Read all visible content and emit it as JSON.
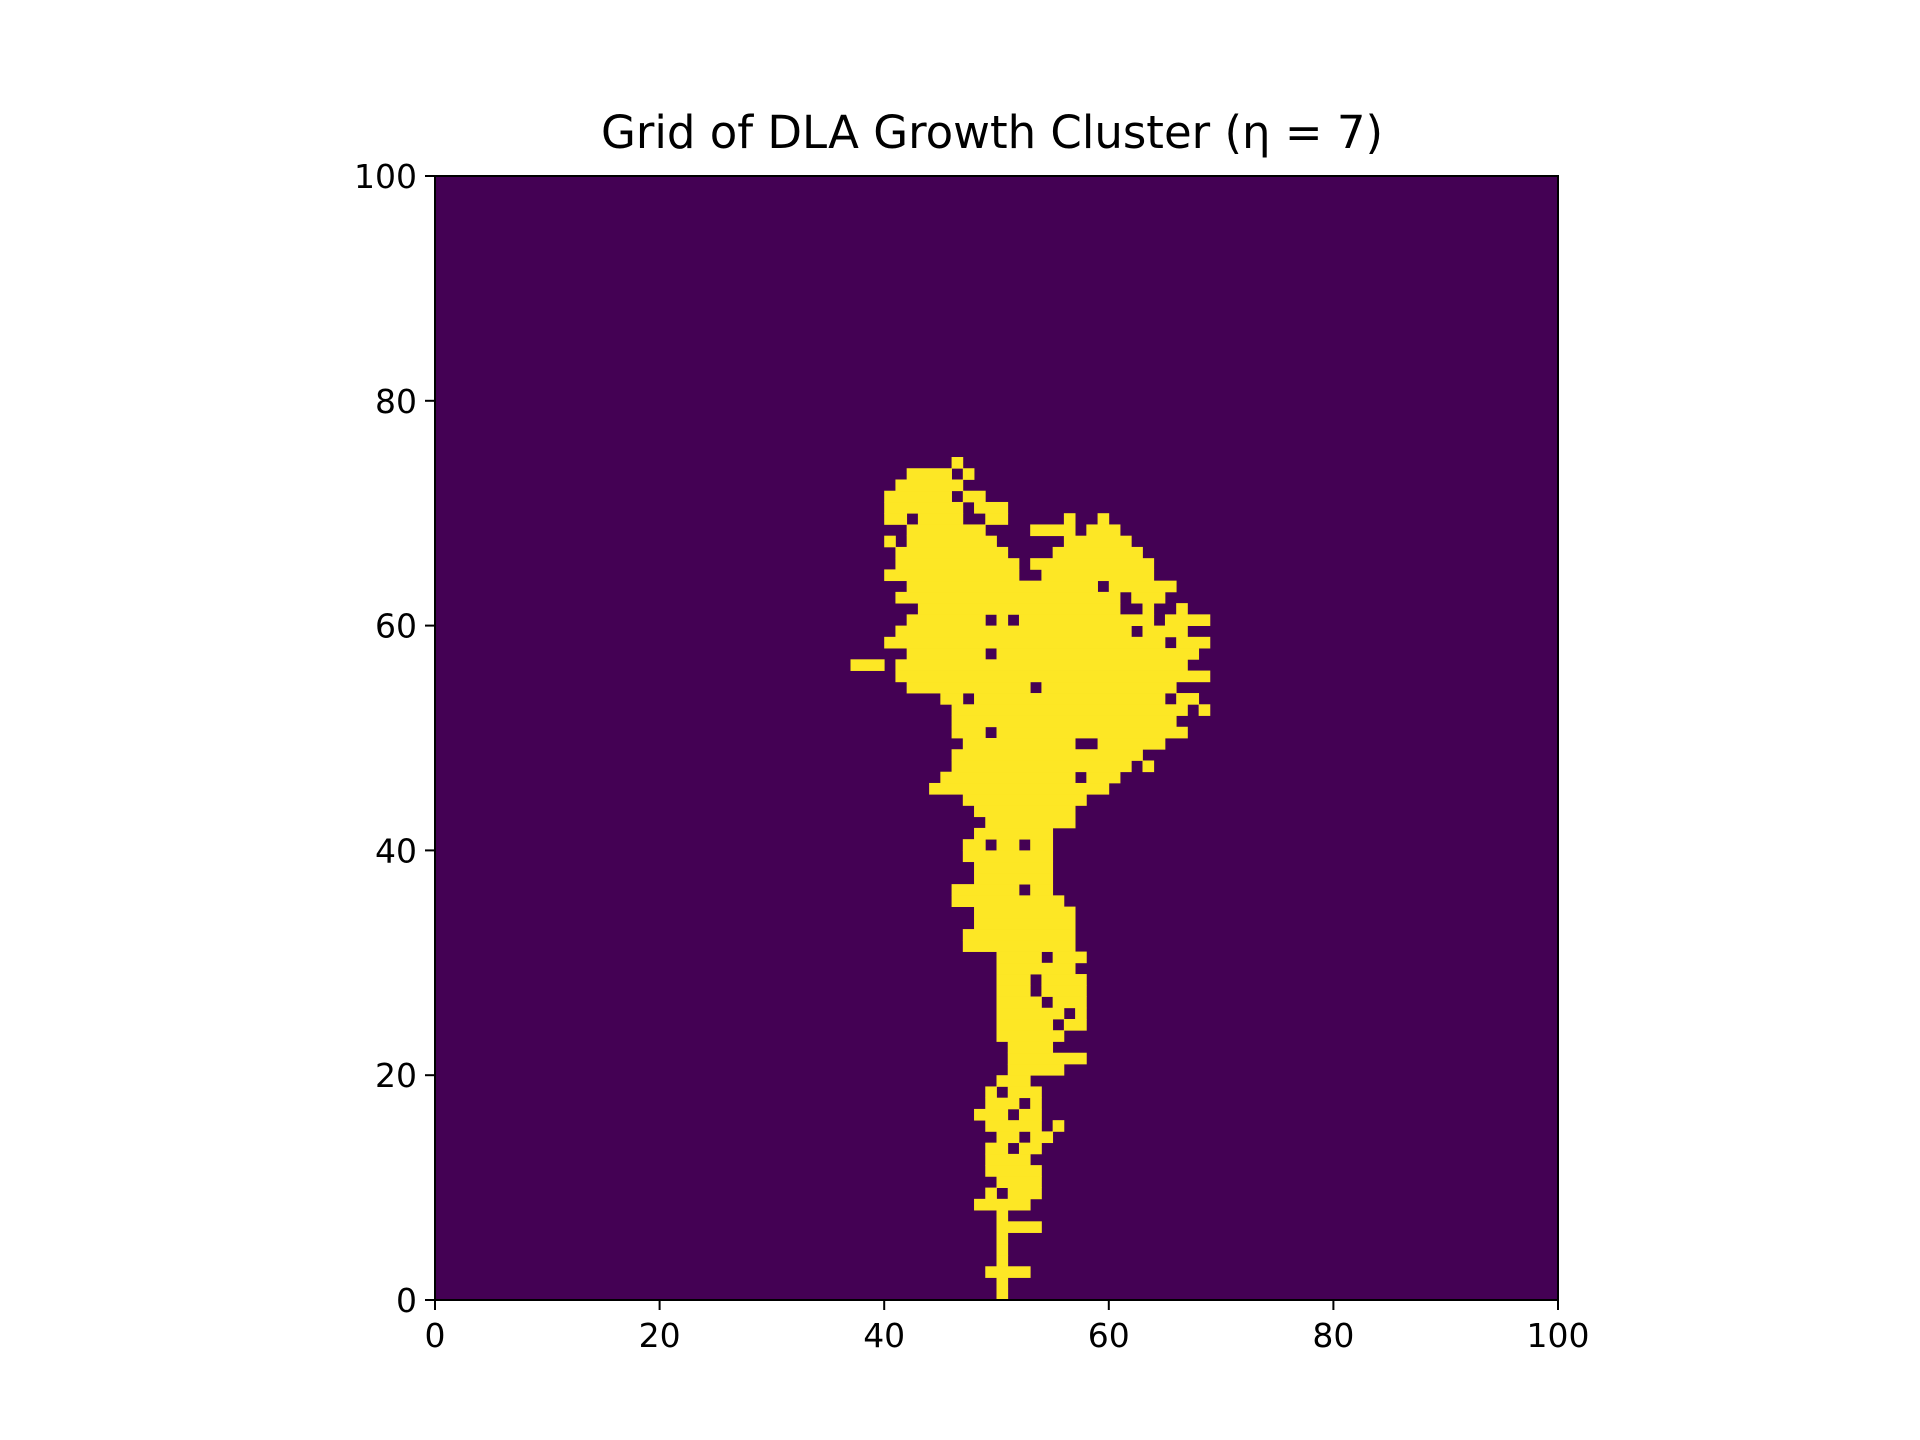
{
  "chart_data": {
    "type": "heatmap",
    "title": "Grid of DLA Growth Cluster (η = 7)",
    "xlabel": "",
    "ylabel": "",
    "xlim": [
      0,
      100
    ],
    "ylim": [
      0,
      100
    ],
    "grid_size": [
      100,
      100
    ],
    "x_ticks": [
      "0",
      "20",
      "40",
      "60",
      "80",
      "100"
    ],
    "y_ticks": [
      "0",
      "20",
      "40",
      "60",
      "80",
      "100"
    ],
    "colormap": {
      "empty": "#440154",
      "occupied": "#fde725"
    },
    "grid": false,
    "occupied_runs_by_row": [
      {
        "y": 0,
        "runs": [
          [
            50,
            50
          ]
        ]
      },
      {
        "y": 1,
        "runs": [
          [
            50,
            50
          ]
        ]
      },
      {
        "y": 2,
        "runs": [
          [
            49,
            52
          ]
        ]
      },
      {
        "y": 3,
        "runs": [
          [
            50,
            50
          ]
        ]
      },
      {
        "y": 4,
        "runs": [
          [
            50,
            50
          ]
        ]
      },
      {
        "y": 5,
        "runs": [
          [
            50,
            50
          ]
        ]
      },
      {
        "y": 6,
        "runs": [
          [
            50,
            53
          ]
        ]
      },
      {
        "y": 7,
        "runs": [
          [
            50,
            50
          ]
        ]
      },
      {
        "y": 8,
        "runs": [
          [
            48,
            52
          ]
        ]
      },
      {
        "y": 9,
        "runs": [
          [
            49,
            49
          ],
          [
            51,
            53
          ]
        ]
      },
      {
        "y": 10,
        "runs": [
          [
            50,
            53
          ]
        ]
      },
      {
        "y": 11,
        "runs": [
          [
            49,
            53
          ]
        ]
      },
      {
        "y": 12,
        "runs": [
          [
            49,
            52
          ]
        ]
      },
      {
        "y": 13,
        "runs": [
          [
            49,
            50
          ],
          [
            52,
            53
          ]
        ]
      },
      {
        "y": 14,
        "runs": [
          [
            50,
            51
          ],
          [
            53,
            54
          ]
        ]
      },
      {
        "y": 15,
        "runs": [
          [
            49,
            53
          ],
          [
            55,
            55
          ]
        ]
      },
      {
        "y": 16,
        "runs": [
          [
            48,
            50
          ],
          [
            52,
            53
          ]
        ]
      },
      {
        "y": 17,
        "runs": [
          [
            49,
            51
          ],
          [
            53,
            53
          ]
        ]
      },
      {
        "y": 18,
        "runs": [
          [
            49,
            49
          ],
          [
            51,
            53
          ]
        ]
      },
      {
        "y": 19,
        "runs": [
          [
            50,
            52
          ]
        ]
      },
      {
        "y": 20,
        "runs": [
          [
            51,
            55
          ]
        ]
      },
      {
        "y": 21,
        "runs": [
          [
            51,
            57
          ]
        ]
      },
      {
        "y": 22,
        "runs": [
          [
            51,
            54
          ]
        ]
      },
      {
        "y": 23,
        "runs": [
          [
            50,
            55
          ]
        ]
      },
      {
        "y": 24,
        "runs": [
          [
            50,
            54
          ],
          [
            56,
            57
          ]
        ]
      },
      {
        "y": 25,
        "runs": [
          [
            50,
            55
          ],
          [
            57,
            57
          ]
        ]
      },
      {
        "y": 26,
        "runs": [
          [
            50,
            53
          ],
          [
            55,
            57
          ]
        ]
      },
      {
        "y": 27,
        "runs": [
          [
            50,
            52
          ],
          [
            54,
            57
          ]
        ]
      },
      {
        "y": 28,
        "runs": [
          [
            50,
            52
          ],
          [
            54,
            57
          ]
        ]
      },
      {
        "y": 29,
        "runs": [
          [
            50,
            56
          ]
        ]
      },
      {
        "y": 30,
        "runs": [
          [
            50,
            53
          ],
          [
            55,
            57
          ]
        ]
      },
      {
        "y": 31,
        "runs": [
          [
            47,
            56
          ]
        ]
      },
      {
        "y": 32,
        "runs": [
          [
            47,
            56
          ]
        ]
      },
      {
        "y": 33,
        "runs": [
          [
            48,
            56
          ]
        ]
      },
      {
        "y": 34,
        "runs": [
          [
            48,
            56
          ]
        ]
      },
      {
        "y": 35,
        "runs": [
          [
            46,
            55
          ]
        ]
      },
      {
        "y": 36,
        "runs": [
          [
            46,
            51
          ],
          [
            53,
            54
          ]
        ]
      },
      {
        "y": 37,
        "runs": [
          [
            48,
            54
          ]
        ]
      },
      {
        "y": 38,
        "runs": [
          [
            48,
            54
          ]
        ]
      },
      {
        "y": 39,
        "runs": [
          [
            47,
            54
          ]
        ]
      },
      {
        "y": 40,
        "runs": [
          [
            47,
            48
          ],
          [
            50,
            51
          ],
          [
            53,
            54
          ]
        ]
      },
      {
        "y": 41,
        "runs": [
          [
            48,
            54
          ]
        ]
      },
      {
        "y": 42,
        "runs": [
          [
            49,
            56
          ]
        ]
      },
      {
        "y": 43,
        "runs": [
          [
            48,
            56
          ]
        ]
      },
      {
        "y": 44,
        "runs": [
          [
            47,
            57
          ]
        ]
      },
      {
        "y": 45,
        "runs": [
          [
            44,
            59
          ]
        ]
      },
      {
        "y": 46,
        "runs": [
          [
            45,
            56
          ],
          [
            58,
            60
          ]
        ]
      },
      {
        "y": 47,
        "runs": [
          [
            46,
            61
          ],
          [
            63,
            63
          ]
        ]
      },
      {
        "y": 48,
        "runs": [
          [
            46,
            62
          ]
        ]
      },
      {
        "y": 49,
        "runs": [
          [
            47,
            56
          ],
          [
            59,
            64
          ]
        ]
      },
      {
        "y": 50,
        "runs": [
          [
            46,
            48
          ],
          [
            50,
            66
          ]
        ]
      },
      {
        "y": 51,
        "runs": [
          [
            46,
            65
          ]
        ]
      },
      {
        "y": 52,
        "runs": [
          [
            46,
            66
          ],
          [
            68,
            68
          ]
        ]
      },
      {
        "y": 53,
        "runs": [
          [
            45,
            46
          ],
          [
            48,
            64
          ],
          [
            66,
            67
          ]
        ]
      },
      {
        "y": 54,
        "runs": [
          [
            42,
            52
          ],
          [
            54,
            65
          ]
        ]
      },
      {
        "y": 55,
        "runs": [
          [
            41,
            68
          ]
        ]
      },
      {
        "y": 56,
        "runs": [
          [
            37,
            39
          ],
          [
            41,
            66
          ]
        ]
      },
      {
        "y": 57,
        "runs": [
          [
            42,
            48
          ],
          [
            50,
            67
          ]
        ]
      },
      {
        "y": 58,
        "runs": [
          [
            40,
            64
          ],
          [
            66,
            68
          ]
        ]
      },
      {
        "y": 59,
        "runs": [
          [
            41,
            61
          ],
          [
            63,
            66
          ]
        ]
      },
      {
        "y": 60,
        "runs": [
          [
            42,
            48
          ],
          [
            50,
            50
          ],
          [
            52,
            63
          ],
          [
            65,
            68
          ]
        ]
      },
      {
        "y": 61,
        "runs": [
          [
            43,
            60
          ],
          [
            63,
            63
          ],
          [
            66,
            66
          ]
        ]
      },
      {
        "y": 62,
        "runs": [
          [
            41,
            60
          ],
          [
            62,
            64
          ]
        ]
      },
      {
        "y": 63,
        "runs": [
          [
            42,
            58
          ],
          [
            60,
            65
          ]
        ]
      },
      {
        "y": 64,
        "runs": [
          [
            40,
            51
          ],
          [
            54,
            63
          ]
        ]
      },
      {
        "y": 65,
        "runs": [
          [
            41,
            51
          ],
          [
            53,
            63
          ]
        ]
      },
      {
        "y": 66,
        "runs": [
          [
            41,
            50
          ],
          [
            55,
            62
          ]
        ]
      },
      {
        "y": 67,
        "runs": [
          [
            40,
            40
          ],
          [
            42,
            49
          ],
          [
            56,
            61
          ]
        ]
      },
      {
        "y": 68,
        "runs": [
          [
            42,
            48
          ],
          [
            53,
            56
          ],
          [
            58,
            60
          ]
        ]
      },
      {
        "y": 69,
        "runs": [
          [
            40,
            41
          ],
          [
            43,
            46
          ],
          [
            49,
            50
          ],
          [
            56,
            56
          ],
          [
            59,
            59
          ]
        ]
      },
      {
        "y": 70,
        "runs": [
          [
            40,
            46
          ],
          [
            48,
            50
          ]
        ]
      },
      {
        "y": 71,
        "runs": [
          [
            40,
            45
          ],
          [
            47,
            48
          ]
        ]
      },
      {
        "y": 72,
        "runs": [
          [
            41,
            46
          ]
        ]
      },
      {
        "y": 73,
        "runs": [
          [
            42,
            45
          ],
          [
            47,
            47
          ]
        ]
      },
      {
        "y": 74,
        "runs": [
          [
            46,
            46
          ]
        ]
      }
    ]
  }
}
